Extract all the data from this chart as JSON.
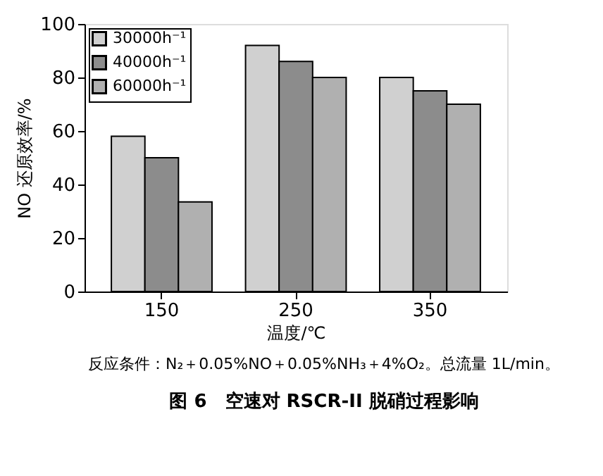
{
  "chart_data": {
    "type": "bar",
    "title": "图 6　空速对 RSCR-II 脱硝过程影响",
    "xlabel": "温度/℃",
    "ylabel": "NO 还原效率/%",
    "categories": [
      "150",
      "250",
      "350"
    ],
    "series": [
      {
        "name": "30000h⁻¹",
        "color": "#d0d0d0",
        "values": [
          58,
          92,
          80
        ]
      },
      {
        "name": "40000h⁻¹",
        "color": "#8c8c8c",
        "values": [
          50,
          86,
          75
        ]
      },
      {
        "name": "60000h⁻¹",
        "color": "#b0b0b0",
        "values": [
          33.5,
          80,
          70
        ]
      }
    ],
    "ylim": [
      0,
      100
    ],
    "yticks": [
      0,
      20,
      40,
      60,
      80,
      100
    ],
    "grid": false,
    "legend": "top left",
    "annotations": [
      "反应条件：N₂＋0.05%NO＋0.05%NH₃＋4%O₂。总流量 1L/min。"
    ]
  }
}
